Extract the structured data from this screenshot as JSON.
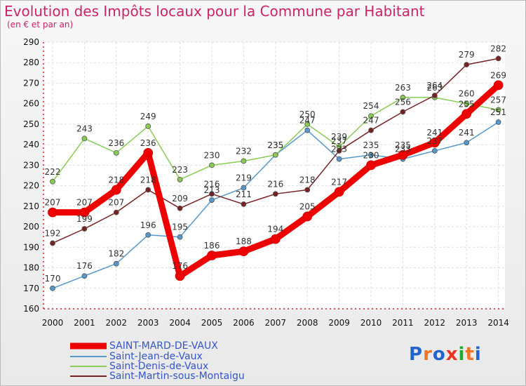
{
  "chart_data": {
    "type": "line",
    "title": "Evolution des Impôts locaux pour la Commune par Habitant",
    "subtitle": "(en € et par an)",
    "x": [
      "2000",
      "2001",
      "2002",
      "2003",
      "2004",
      "2005",
      "2006",
      "2007",
      "2008",
      "2009",
      "2010",
      "2011",
      "2012",
      "2013",
      "2014"
    ],
    "yticks": [
      "160",
      "170",
      "180",
      "190",
      "200",
      "210",
      "220",
      "230",
      "240",
      "250",
      "260",
      "270",
      "280",
      "290"
    ],
    "ylim": [
      160,
      290
    ],
    "grid": true,
    "series": [
      {
        "name": "Saint-Jean-de-Vaux",
        "color": "#5599cc",
        "width": 1.5,
        "values": [
          170,
          176,
          182,
          196,
          195,
          213,
          219,
          235,
          247,
          233,
          235,
          233,
          237,
          241,
          251
        ],
        "labels": [
          "170",
          "176",
          "182",
          "196",
          "195",
          "213",
          "219",
          "235",
          "247",
          "233",
          "235",
          "233",
          "237",
          "241",
          "251"
        ]
      },
      {
        "name": "Saint-Denis-de-Vaux",
        "color": "#88cc55",
        "width": 1.5,
        "values": [
          222,
          243,
          236,
          249,
          223,
          230,
          232,
          235,
          250,
          239,
          254,
          263,
          263,
          260,
          257
        ],
        "labels": [
          "222",
          "243",
          "236",
          "249",
          "223",
          "230",
          "232",
          "235",
          "250",
          "239",
          "254",
          "263",
          "263",
          "260",
          "257"
        ]
      },
      {
        "name": "Saint-Martin-sous-Montaigu",
        "color": "#772222",
        "width": 1.5,
        "values": [
          192,
          199,
          207,
          218,
          209,
          216,
          211,
          216,
          218,
          237,
          247,
          256,
          264,
          279,
          282
        ],
        "labels": [
          "192",
          "199",
          "207",
          "218",
          "209",
          "216",
          "211",
          "216",
          "218",
          "237",
          "247",
          "256",
          "264",
          "279",
          "282"
        ]
      },
      {
        "name": "SAINT-MARD-DE-VAUX",
        "color": "#ee0000",
        "width": 9,
        "values": [
          207,
          207,
          218,
          236,
          176,
          186,
          188,
          194,
          205,
          217,
          230,
          235,
          241,
          255,
          269
        ],
        "labels": [
          "207",
          "207",
          "218",
          "236",
          "176",
          "186",
          "188",
          "194",
          "205",
          "217",
          "230",
          "235",
          "241",
          "255",
          "269"
        ]
      }
    ]
  },
  "legend": {
    "items": [
      {
        "label": "SAINT-MARD-DE-VAUX",
        "color": "#ee0000"
      },
      {
        "label": "Saint-Jean-de-Vaux",
        "color": "#5599cc"
      },
      {
        "label": "Saint-Denis-de-Vaux",
        "color": "#88cc55"
      },
      {
        "label": "Saint-Martin-sous-Montaigu",
        "color": "#772222"
      }
    ]
  },
  "logo": {
    "text": "Proxiti",
    "colors": [
      "#2266cc",
      "#ee7722",
      "#2266cc",
      "#ee3322",
      "#22aa33",
      "#ee7722",
      "#2266cc"
    ]
  }
}
